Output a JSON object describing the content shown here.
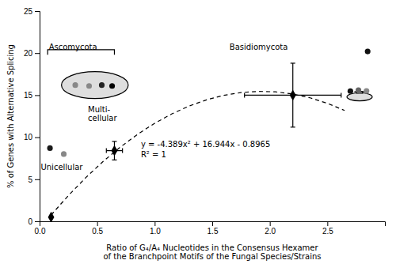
{
  "chart_data": {
    "type": "scatter",
    "x_label": "Ratio of G₄/A₄ Nucleotides in the Consensus Hexamer\nof the Branchpoint Motifs of the Fungal Species/Strains",
    "y_label": "% of Genes with Alternative Splicing",
    "xlim": [
      0,
      3.0
    ],
    "ylim": [
      0,
      25
    ],
    "xticks": [
      {
        "value": 0.0,
        "label": "0.0"
      },
      0.5,
      {
        "value": 1.0,
        "label": "1.0"
      },
      1.5,
      {
        "value": 2.0,
        "label": "2.0"
      },
      2.5
    ],
    "yticks": [
      0,
      5,
      10,
      15,
      20,
      25
    ],
    "grid": false,
    "series": [
      {
        "type": "line",
        "line_style": "dashed",
        "color": "#000000",
        "x": [
          0.1,
          0.25,
          0.4,
          0.55,
          0.7,
          0.85,
          1.0,
          1.15,
          1.3,
          1.45,
          1.6,
          1.75,
          1.9,
          2.05,
          2.2,
          2.35,
          2.5,
          2.65
        ],
        "values": [
          0.75401,
          3.0651875,
          5.17886,
          7.0950275,
          8.81369,
          10.3348475,
          11.6585,
          12.7846475,
          13.71329,
          14.4444275,
          14.97806,
          15.3141875,
          15.45281,
          15.3939275,
          15.13754,
          14.6836475,
          14.03225,
          13.1833475
        ]
      },
      {
        "type": "scatter",
        "marker": "diamond",
        "color": "#000000",
        "x": [
          0.1,
          0.65,
          2.2
        ],
        "values": [
          0.5,
          8.4,
          15.0
        ],
        "x_errors": [
          0,
          0.07,
          0.42
        ],
        "errors": [
          0,
          1.1,
          3.8
        ]
      },
      {
        "type": "scatter",
        "marker": "circle",
        "x": [
          0.09,
          0.21,
          2.85
        ],
        "values": [
          8.7,
          8.0,
          20.2
        ],
        "colors": [
          "#1a1a1a",
          "#888888",
          "#111111"
        ]
      },
      {
        "type": "scatter",
        "marker": "circle",
        "x": [
          0.31,
          0.43,
          0.54,
          0.63
        ],
        "values": [
          16.2,
          16.1,
          16.2,
          16.1
        ],
        "colors": [
          "#888888",
          "#888888",
          "#222222",
          "#000000"
        ]
      },
      {
        "type": "scatter",
        "marker": "circle",
        "x": [
          2.7,
          2.77,
          2.84
        ],
        "values": [
          15.48,
          15.6,
          15.5
        ],
        "colors": [
          "#111111",
          "#666666",
          "#888888"
        ]
      }
    ],
    "annotations": [
      {
        "text": "y = -4.389x² + 16.944x - 0.8965",
        "x": 0.88,
        "y": 9.2
      },
      {
        "text": "R² = 1",
        "x": 0.88,
        "y": 8.0
      },
      {
        "text": "Unicellular",
        "x": 0.01,
        "y": 6.5
      },
      {
        "text": "Multi-\ncellular",
        "x": 0.42,
        "y": 12.8
      },
      {
        "text": "Ascomycota",
        "x": 0.08,
        "y": 20.8
      },
      {
        "text": "Basidiomycota",
        "x": 1.65,
        "y": 20.8
      }
    ],
    "shapes": [
      {
        "type": "ellipse",
        "cx": 0.48,
        "cy": 16.2,
        "width": 0.58,
        "height": 3.2,
        "color": "#d8d8d8"
      },
      {
        "type": "ellipse",
        "cx": 2.78,
        "cy": 14.8,
        "width": 0.22,
        "height": 0.95,
        "color": "#d8d8d8"
      },
      {
        "type": "rect",
        "x": 2.755,
        "y": 15.225,
        "width": 0.05,
        "height": 0.2,
        "color": "#d8d8d8"
      },
      {
        "type": "polyline",
        "x": [
          2.735,
          2.825
        ],
        "y": [
          15.425,
          15.425
        ]
      },
      {
        "type": "polyline",
        "x": [
          0.07,
          0.07,
          0.65,
          0.65
        ],
        "y": [
          19.8,
          20.4,
          20.4,
          19.8
        ]
      }
    ]
  }
}
